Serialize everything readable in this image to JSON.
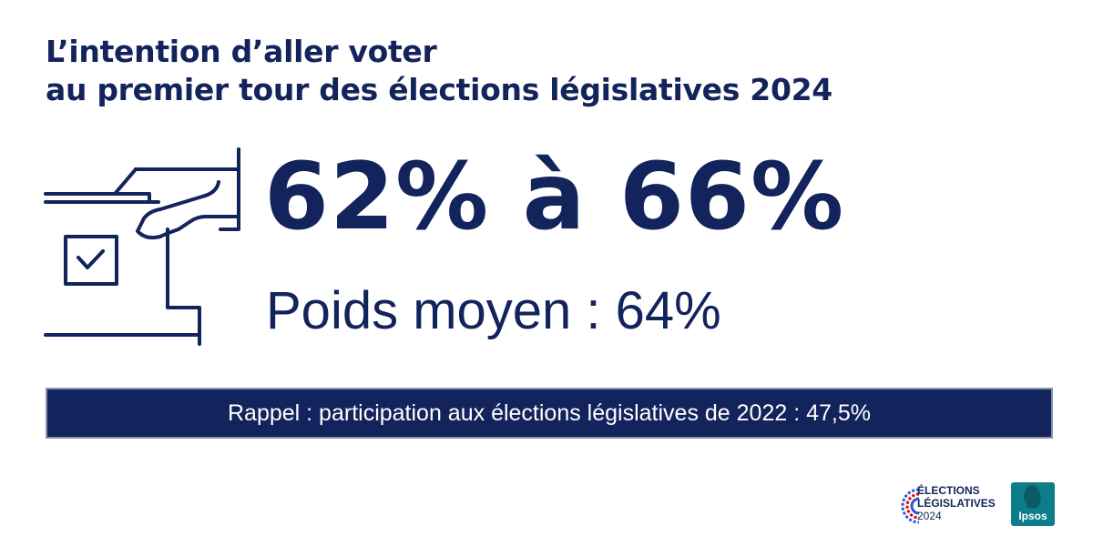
{
  "title": {
    "line1": "L’intention d’aller voter",
    "line2": "au premier tour des élections législatives 2024"
  },
  "headline": {
    "range": "62% à 66%",
    "average": "Poids moyen : 64%"
  },
  "recall": {
    "text": "Rappel : participation aux élections législatives de 2022 : 47,5%"
  },
  "logos": {
    "election": {
      "line1": "ÉLECTIONS",
      "line2": "LÉGISLATIVES",
      "line3": "2024"
    },
    "ipsos": "Ipsos"
  },
  "colors": {
    "navy": "#13235b",
    "banner_border": "#8b93b3",
    "ipsos_teal": "#0e7d8a",
    "logo_red": "#e1000f",
    "logo_blue": "#2a59c8"
  },
  "icons": {
    "illustration": "hand-voting-ballot-box-icon",
    "checkbox": "checkbox-checked-icon"
  }
}
